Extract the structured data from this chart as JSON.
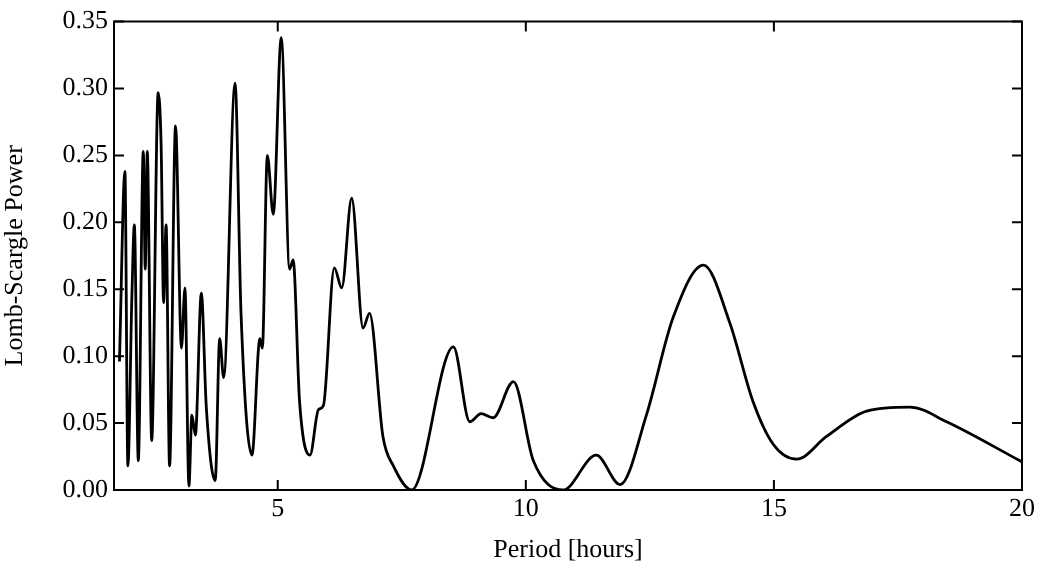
{
  "chart_data": {
    "type": "line",
    "xlabel": "Period [hours]",
    "ylabel": "Lomb-Scargle Power",
    "xlim": [
      1.7,
      20
    ],
    "xticks": [
      5,
      10,
      15,
      20
    ],
    "ylim": [
      0,
      0.35
    ],
    "yticks": [
      {
        "value": 0,
        "label": "0.00"
      },
      {
        "value": 0.05,
        "label": "0.05"
      },
      {
        "value": 0.1,
        "label": "0.10"
      },
      {
        "value": 0.15,
        "label": "0.15"
      },
      {
        "value": 0.2,
        "label": "0.20"
      },
      {
        "value": 0.25,
        "label": "0.25"
      },
      {
        "value": 0.3,
        "label": "0.30"
      },
      {
        "value": 0.35,
        "label": "0.35"
      }
    ],
    "grid": false,
    "legend": false,
    "marker": "none",
    "line_style": "solid",
    "series": [
      {
        "color": "#000000",
        "x": [
          1.81,
          1.92,
          1.98,
          2.06,
          2.11,
          2.19,
          2.29,
          2.33,
          2.37,
          2.46,
          2.59,
          2.65,
          2.7,
          2.75,
          2.82,
          2.94,
          3.06,
          3.13,
          3.21,
          3.27,
          3.34,
          3.46,
          3.56,
          3.74,
          3.83,
          3.91,
          4.14,
          4.26,
          4.48,
          4.64,
          4.69,
          4.79,
          4.91,
          5.07,
          5.24,
          5.31,
          5.44,
          5.65,
          5.82,
          5.92,
          6.14,
          6.29,
          6.49,
          6.72,
          6.85,
          7.12,
          7.33,
          7.7,
          8.54,
          8.87,
          9.1,
          9.34,
          9.75,
          10.15,
          10.75,
          11.42,
          11.9,
          12.43,
          12.97,
          13.58,
          14.11,
          14.58,
          14.99,
          15.46,
          16.06,
          16.87,
          17.74,
          18.48,
          20
        ],
        "values": [
          0.096,
          0.238,
          0.018,
          0.144,
          0.198,
          0.022,
          0.253,
          0.165,
          0.253,
          0.037,
          0.297,
          0.257,
          0.14,
          0.198,
          0.018,
          0.272,
          0.106,
          0.151,
          0.003,
          0.056,
          0.041,
          0.147,
          0.062,
          0.007,
          0.113,
          0.084,
          0.304,
          0.132,
          0.026,
          0.113,
          0.106,
          0.25,
          0.206,
          0.338,
          0.165,
          0.172,
          0.066,
          0.026,
          0.06,
          0.063,
          0.166,
          0.151,
          0.218,
          0.121,
          0.132,
          0.04,
          0.018,
          0,
          0.107,
          0.051,
          0.057,
          0.054,
          0.081,
          0.022,
          0,
          0.026,
          0.004,
          0.056,
          0.129,
          0.168,
          0.125,
          0.066,
          0.034,
          0.023,
          0.04,
          0.059,
          0.062,
          0.051,
          0.021
        ]
      }
    ]
  }
}
